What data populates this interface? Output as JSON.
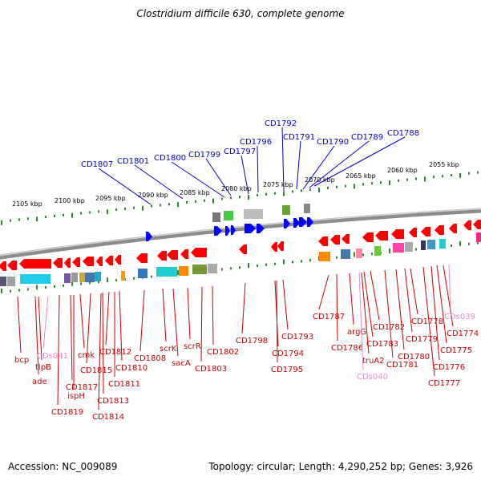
{
  "title": "Clostridium difficile 630, complete genome",
  "footer": {
    "accession": "Accession: NC_009089",
    "summary": "Topology: circular; Length: 4,290,252 bp; Genes: 3,926"
  },
  "colors": {
    "upper_label": "#0000cc",
    "lower_label": "#cc0000",
    "pseudo_label": "#e58ad6",
    "tick": "#2a8a2a",
    "forward_gene": "#0000ff",
    "reverse_gene": "#ff0000",
    "backbone": "#8c8c8c"
  },
  "scale_labels": [
    "2105 kbp",
    "2100 kbp",
    "2095 kbp",
    "2090 kbp",
    "2085 kbp",
    "2080 kbp",
    "2075 kbp",
    "2070 kbp",
    "2065 kbp",
    "2060 kbp",
    "2055 kbp"
  ],
  "upper_labels": [
    "CD1807",
    "CD1801",
    "CD1800",
    "CD1799",
    "CD1797",
    "CD1796",
    "CD1792",
    "CD1791",
    "CD1790",
    "CD1789",
    "CD1788"
  ],
  "lower_labels": [
    {
      "text": "bcp",
      "pseudo": false
    },
    {
      "text": "tlpB",
      "pseudo": false
    },
    {
      "text": "ade",
      "pseudo": false
    },
    {
      "text": "CDs041",
      "pseudo": true
    },
    {
      "text": "CD1819",
      "pseudo": false
    },
    {
      "text": "CD1817",
      "pseudo": false
    },
    {
      "text": "ispH",
      "pseudo": false
    },
    {
      "text": "cmk",
      "pseudo": false
    },
    {
      "text": "CD1815",
      "pseudo": false
    },
    {
      "text": "CD1814",
      "pseudo": false
    },
    {
      "text": "CD1813",
      "pseudo": false
    },
    {
      "text": "CD1812",
      "pseudo": false
    },
    {
      "text": "CD1811",
      "pseudo": false
    },
    {
      "text": "CD1810",
      "pseudo": false
    },
    {
      "text": "CD1808",
      "pseudo": false
    },
    {
      "text": "scrK",
      "pseudo": false
    },
    {
      "text": "sacA",
      "pseudo": false
    },
    {
      "text": "scrR",
      "pseudo": false
    },
    {
      "text": "CD1803",
      "pseudo": false
    },
    {
      "text": "CD1802",
      "pseudo": false
    },
    {
      "text": "CD1798",
      "pseudo": false
    },
    {
      "text": "CD1794",
      "pseudo": false
    },
    {
      "text": "CD1795",
      "pseudo": false
    },
    {
      "text": "CD1793",
      "pseudo": false
    },
    {
      "text": "CD1787",
      "pseudo": false
    },
    {
      "text": "CD1786",
      "pseudo": false
    },
    {
      "text": "argG",
      "pseudo": false
    },
    {
      "text": "truA2",
      "pseudo": false
    },
    {
      "text": "CDs040",
      "pseudo": true
    },
    {
      "text": "CD1783",
      "pseudo": false
    },
    {
      "text": "CD1782",
      "pseudo": false
    },
    {
      "text": "CD1781",
      "pseudo": false
    },
    {
      "text": "CD1780",
      "pseudo": false
    },
    {
      "text": "CD1779",
      "pseudo": false
    },
    {
      "text": "CD1778",
      "pseudo": false
    },
    {
      "text": "CD1777",
      "pseudo": false
    },
    {
      "text": "CD1776",
      "pseudo": false
    },
    {
      "text": "CD1775",
      "pseudo": false
    },
    {
      "text": "CD1774",
      "pseudo": false
    },
    {
      "text": "CDs039",
      "pseudo": true
    }
  ]
}
